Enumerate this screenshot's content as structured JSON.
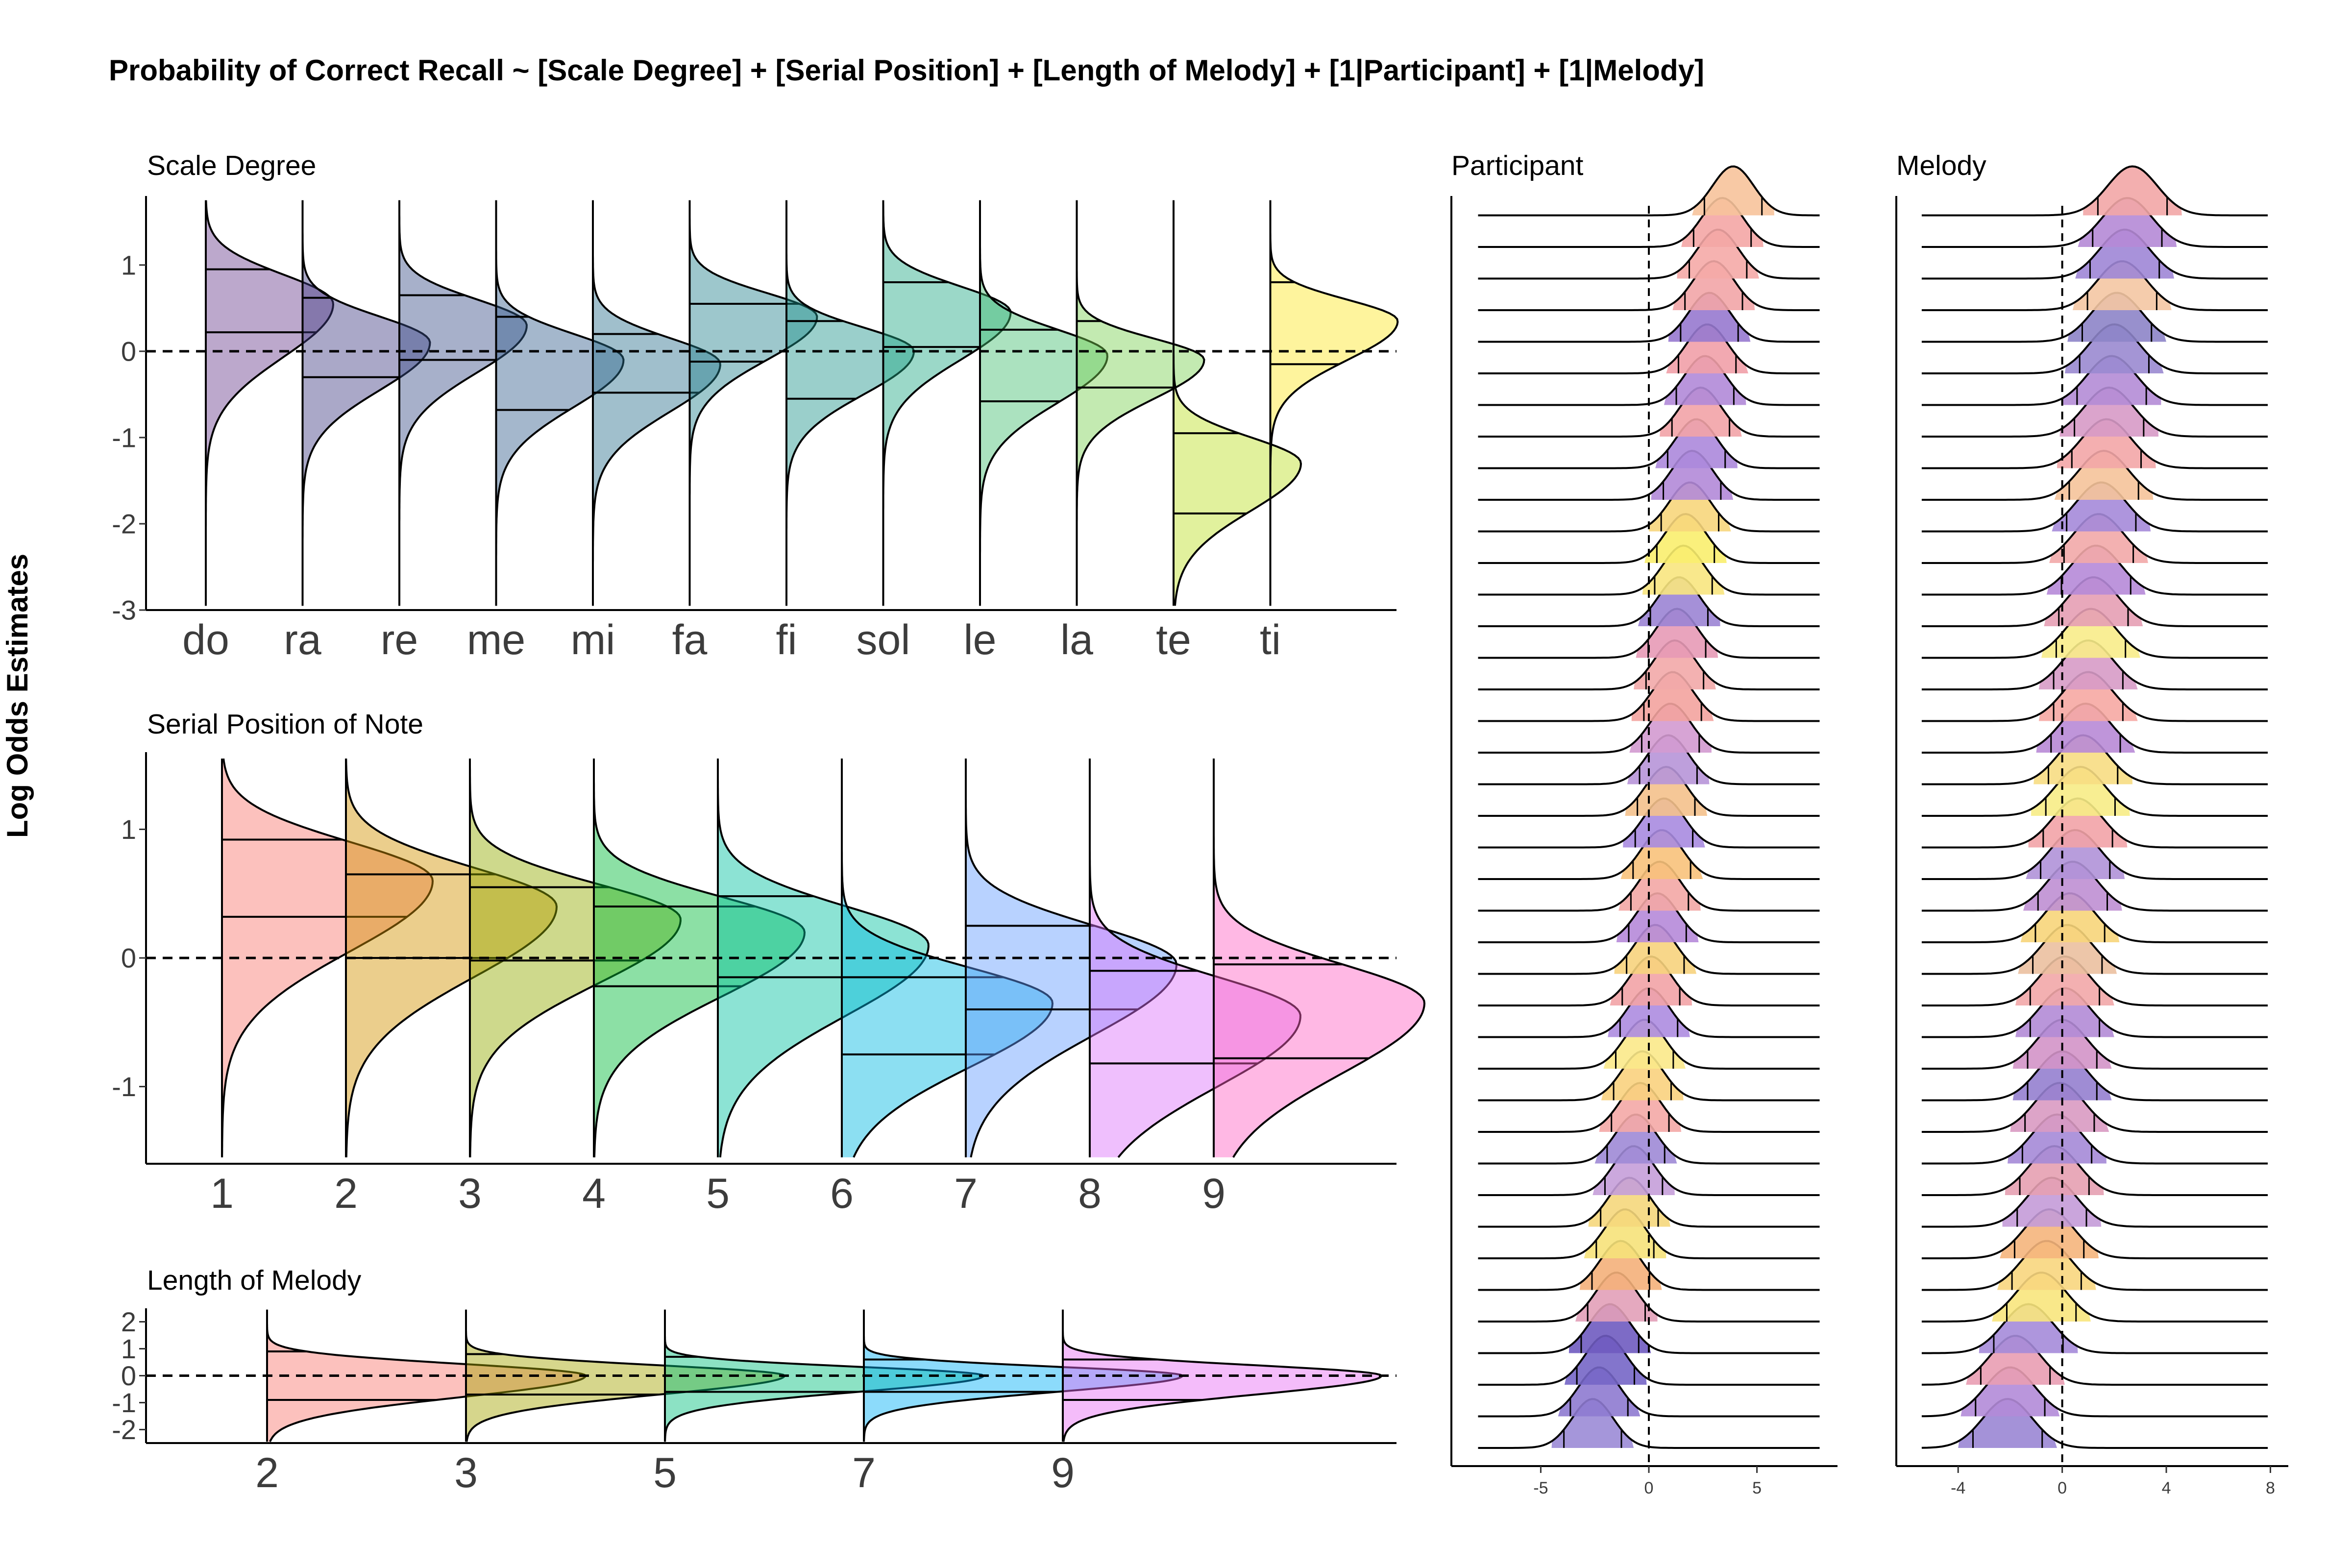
{
  "title": "Probability of Correct Recall ~ [Scale Degree] + [Serial Position] + [Length of Melody] + [1|Participant] + [1|Melody]",
  "ylabel": "Log Odds Estimates",
  "chart_data": [
    {
      "type": "violin",
      "title": "Scale Degree",
      "ylim": [
        -3,
        1.8
      ],
      "yticks": [
        1,
        0,
        -1,
        -2,
        -3
      ],
      "reference_line": 0,
      "categories": [
        "do",
        "ra",
        "re",
        "me",
        "mi",
        "fa",
        "fi",
        "sol",
        "le",
        "la",
        "te",
        "ti"
      ],
      "series": [
        {
          "category": "do",
          "mode": 0.55,
          "spread": 0.62,
          "q_low": 0.22,
          "q_high": 0.95,
          "color": "#6a3d8f"
        },
        {
          "category": "ra",
          "mode": 0.1,
          "spread": 0.55,
          "q_low": -0.3,
          "q_high": 0.62,
          "color": "#433e85"
        },
        {
          "category": "re",
          "mode": 0.3,
          "spread": 0.55,
          "q_low": -0.1,
          "q_high": 0.65,
          "color": "#3b4f8a"
        },
        {
          "category": "me",
          "mode": -0.1,
          "spread": 0.55,
          "q_low": -0.68,
          "q_high": 0.4,
          "color": "#35608d"
        },
        {
          "category": "mi",
          "mode": -0.15,
          "spread": 0.55,
          "q_low": -0.48,
          "q_high": 0.2,
          "color": "#2c728e"
        },
        {
          "category": "fa",
          "mode": 0.4,
          "spread": 0.5,
          "q_low": -0.12,
          "q_high": 0.55,
          "color": "#25838e"
        },
        {
          "category": "fi",
          "mode": 0.0,
          "spread": 0.5,
          "q_low": -0.55,
          "q_high": 0.35,
          "color": "#1f958b"
        },
        {
          "category": "sol",
          "mode": 0.45,
          "spread": 0.55,
          "q_low": 0.05,
          "q_high": 0.8,
          "color": "#22a884"
        },
        {
          "category": "le",
          "mode": -0.05,
          "spread": 0.55,
          "q_low": -0.58,
          "q_high": 0.25,
          "color": "#44bf70"
        },
        {
          "category": "la",
          "mode": -0.1,
          "spread": 0.45,
          "q_low": -0.42,
          "q_high": 0.35,
          "color": "#7ad151"
        },
        {
          "category": "te",
          "mode": -1.3,
          "spread": 0.55,
          "q_low": -1.88,
          "q_high": -0.95,
          "color": "#bddf26"
        },
        {
          "category": "ti",
          "mode": 0.35,
          "spread": 0.45,
          "q_low": -0.15,
          "q_high": 0.8,
          "color": "#fde725"
        }
      ]
    },
    {
      "type": "violin",
      "title": "Serial Position of Note",
      "ylim": [
        -1.6,
        1.6
      ],
      "yticks": [
        1,
        0,
        -1
      ],
      "reference_line": 0,
      "categories": [
        "1",
        "2",
        "3",
        "4",
        "5",
        "6",
        "7",
        "8",
        "9"
      ],
      "series": [
        {
          "category": "1",
          "mode": 0.6,
          "spread": 0.55,
          "q_low": 0.32,
          "q_high": 0.92,
          "color": "#f8766d"
        },
        {
          "category": "2",
          "mode": 0.4,
          "spread": 0.55,
          "q_low": 0.0,
          "q_high": 0.65,
          "color": "#d39200"
        },
        {
          "category": "3",
          "mode": 0.3,
          "spread": 0.5,
          "q_low": -0.02,
          "q_high": 0.55,
          "color": "#93aa00"
        },
        {
          "category": "4",
          "mode": 0.2,
          "spread": 0.5,
          "q_low": -0.22,
          "q_high": 0.4,
          "color": "#00ba38"
        },
        {
          "category": "5",
          "mode": 0.1,
          "spread": 0.55,
          "q_low": -0.15,
          "q_high": 0.48,
          "color": "#00c19f"
        },
        {
          "category": "6",
          "mode": -0.35,
          "spread": 0.5,
          "q_low": -0.75,
          "q_high": -0.15,
          "color": "#00b9e3"
        },
        {
          "category": "7",
          "mode": -0.05,
          "spread": 0.55,
          "q_low": -0.4,
          "q_high": 0.25,
          "color": "#619cff"
        },
        {
          "category": "8",
          "mode": -0.45,
          "spread": 0.55,
          "q_low": -0.82,
          "q_high": -0.1,
          "color": "#db72fb"
        },
        {
          "category": "9",
          "mode": -0.35,
          "spread": 0.55,
          "q_low": -0.78,
          "q_high": -0.05,
          "color": "#ff61c3"
        }
      ]
    },
    {
      "type": "violin",
      "title": "Length of Melody",
      "ylim": [
        -2.5,
        2.5
      ],
      "yticks": [
        2,
        1,
        0,
        -1,
        -2
      ],
      "reference_line": 0,
      "categories": [
        "2",
        "3",
        "5",
        "7",
        "9"
      ],
      "series": [
        {
          "category": "2",
          "mode": 0.0,
          "spread": 0.8,
          "q_low": -0.9,
          "q_high": 0.9,
          "color": "#f8766d"
        },
        {
          "category": "3",
          "mode": 0.0,
          "spread": 0.7,
          "q_low": -0.7,
          "q_high": 0.8,
          "color": "#a3a500"
        },
        {
          "category": "5",
          "mode": 0.0,
          "spread": 0.6,
          "q_low": -0.6,
          "q_high": 0.7,
          "color": "#00bf7d"
        },
        {
          "category": "7",
          "mode": 0.0,
          "spread": 0.6,
          "q_low": -0.6,
          "q_high": 0.6,
          "color": "#00b0f6"
        },
        {
          "category": "9",
          "mode": 0.0,
          "spread": 0.7,
          "q_low": -0.9,
          "q_high": 0.6,
          "color": "#e76bf3"
        }
      ]
    },
    {
      "type": "ridgeline",
      "title": "Participant",
      "xlim": [
        -8.5,
        8.5
      ],
      "xticks": [
        -5,
        0,
        5
      ],
      "reference_line": 0,
      "n_ridges": 40,
      "centers": [
        -2.6,
        -2.3,
        -2.0,
        -1.8,
        -1.5,
        -1.3,
        -1.1,
        -0.9,
        -0.7,
        -0.6,
        -0.4,
        -0.3,
        -0.2,
        0.0,
        0.1,
        0.3,
        0.4,
        0.5,
        0.6,
        0.7,
        0.8,
        0.9,
        1.0,
        1.1,
        1.2,
        1.3,
        1.4,
        1.6,
        1.7,
        1.9,
        2.0,
        2.2,
        2.4,
        2.6,
        2.7,
        2.8,
        3.0,
        3.2,
        3.4,
        3.9
      ],
      "colors": [
        "#9b8bd6",
        "#8e7ad0",
        "#7566c6",
        "#6f5bc0",
        "#e2a0b8",
        "#f4b07a",
        "#f6e27a",
        "#f5d77c",
        "#c59fd9",
        "#9f89d6",
        "#f4a9a6",
        "#f9d27e",
        "#fbe98a",
        "#ad8ce0",
        "#f2a3a6",
        "#f7d37d",
        "#b68ad9",
        "#f3a7a5",
        "#f8c27b",
        "#a88be0",
        "#f4c18c",
        "#b795d8",
        "#d39ad0",
        "#f3a39e",
        "#f2a8a8",
        "#e79ab6",
        "#9b84d4",
        "#f8e67f",
        "#f9ee6e",
        "#f7d67c",
        "#b38ad8",
        "#ac88dc",
        "#f2a3a7",
        "#b18ad8",
        "#f1a0a9",
        "#9779cf",
        "#f2a5a7",
        "#f5aaa7",
        "#f4a6a5",
        "#f7c39b"
      ]
    },
    {
      "type": "ridgeline",
      "title": "Melody",
      "xlim": [
        -6,
        8.5
      ],
      "xticks": [
        -4,
        0,
        4,
        8
      ],
      "reference_line": 0,
      "n_ridges": 40,
      "centers": [
        -2.1,
        -2.0,
        -1.8,
        -1.3,
        -0.8,
        -0.6,
        -0.5,
        -0.4,
        -0.3,
        -0.2,
        -0.1,
        0.0,
        0.0,
        0.1,
        0.1,
        0.2,
        0.3,
        0.4,
        0.5,
        0.6,
        0.7,
        0.8,
        0.9,
        1.0,
        1.0,
        1.1,
        1.2,
        1.3,
        1.4,
        1.5,
        1.6,
        1.7,
        1.8,
        1.9,
        2.0,
        2.1,
        2.3,
        2.4,
        2.5,
        2.7
      ],
      "colors": [
        "#9a86d4",
        "#b38bd8",
        "#e99db2",
        "#a58bd9",
        "#f8e57d",
        "#f8d67e",
        "#f5b57c",
        "#c49bd8",
        "#e6a0b1",
        "#a58ad7",
        "#d99ac2",
        "#9580cf",
        "#d394c8",
        "#b28bd6",
        "#f2a7a8",
        "#ebc0a0",
        "#f7d57a",
        "#bf8fd3",
        "#b092d8",
        "#f2a3a7",
        "#f7ec86",
        "#f7dd83",
        "#b88ad6",
        "#f6a9a3",
        "#d79bc6",
        "#f8ec89",
        "#e59fb4",
        "#b68ad8",
        "#f2a8a8",
        "#a58ad9",
        "#f5c39a",
        "#f3a6a7",
        "#d79ac6",
        "#b48cd6",
        "#9a8ad0",
        "#8d84c8",
        "#f4c6a3",
        "#9e86d6",
        "#b58ad6",
        "#f2a6a6"
      ]
    }
  ]
}
